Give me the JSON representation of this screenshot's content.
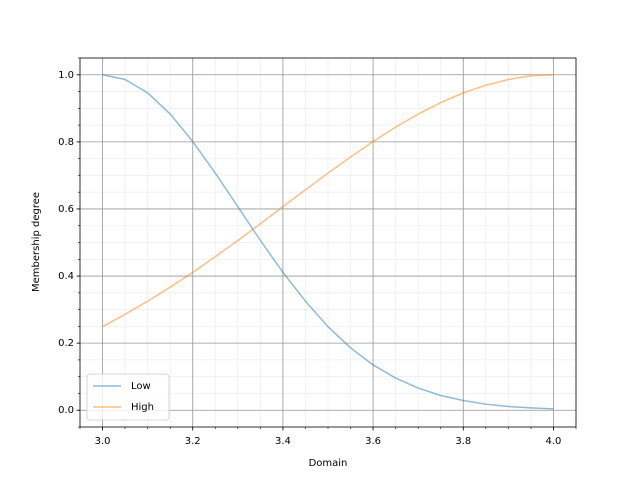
{
  "chart_data": {
    "type": "line",
    "x_label": "Domain",
    "y_label": "Membership degree",
    "x": [
      3.0,
      3.05,
      3.1,
      3.15,
      3.2,
      3.25,
      3.3,
      3.35,
      3.4,
      3.45,
      3.5,
      3.55,
      3.6,
      3.65,
      3.7,
      3.75,
      3.8,
      3.85,
      3.9,
      3.95,
      4.0
    ],
    "series": [
      {
        "name": "Low",
        "color": "#1f77b4",
        "alpha": 0.5,
        "values": [
          1.0,
          0.986,
          0.946,
          0.883,
          0.801,
          0.707,
          0.607,
          0.506,
          0.411,
          0.325,
          0.249,
          0.186,
          0.135,
          0.096,
          0.066,
          0.044,
          0.029,
          0.018,
          0.011,
          0.007,
          0.004
        ]
      },
      {
        "name": "High",
        "color": "#ff7f0e",
        "alpha": 0.5,
        "values": [
          0.249,
          0.286,
          0.325,
          0.367,
          0.411,
          0.458,
          0.506,
          0.556,
          0.607,
          0.657,
          0.707,
          0.755,
          0.801,
          0.844,
          0.883,
          0.917,
          0.946,
          0.969,
          0.986,
          0.997,
          1.0
        ]
      }
    ],
    "xlim": [
      2.95,
      4.05
    ],
    "ylim": [
      -0.05,
      1.05
    ],
    "xticks": [
      {
        "value": 3,
        "label": "3.0"
      },
      3.2,
      3.4,
      3.6,
      3.8,
      {
        "value": 4,
        "label": "4.0"
      }
    ],
    "yticks": [
      {
        "value": 0,
        "label": "0.0"
      },
      0.2,
      0.4,
      0.6,
      0.8,
      {
        "value": 1,
        "label": "1.0"
      }
    ],
    "grid": true,
    "minor_grid": true,
    "legend": "lower left"
  }
}
